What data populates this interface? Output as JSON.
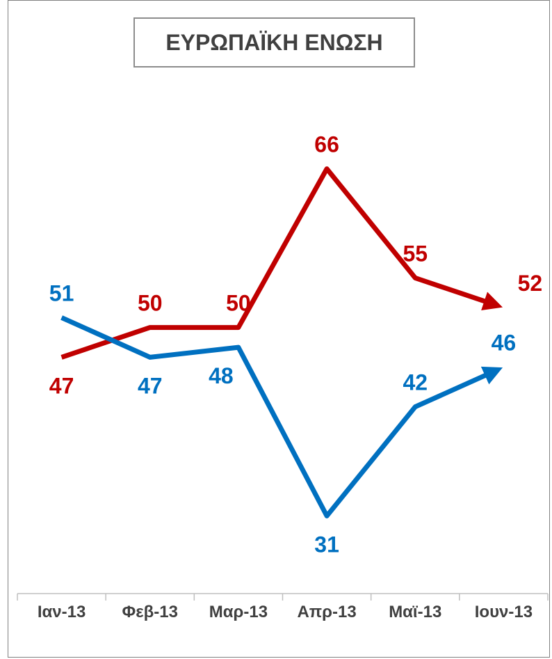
{
  "chart_data": {
    "type": "line",
    "title": "ΕΥΡΩΠΑΪΚΗ ΕΝΩΣΗ",
    "categories": [
      "Ιαν-13",
      "Φεβ-13",
      "Μαρ-13",
      "Απρ-13",
      "Μαϊ-13",
      "Ιουν-13"
    ],
    "series": [
      {
        "name": "",
        "color": "#c00000",
        "values": [
          47,
          50,
          50,
          66,
          55,
          52
        ]
      },
      {
        "name": "",
        "color": "#0070c0",
        "values": [
          51,
          47,
          48,
          31,
          42,
          46
        ]
      }
    ],
    "xlabel": "",
    "ylabel": "",
    "grid": false,
    "legend": "none"
  }
}
